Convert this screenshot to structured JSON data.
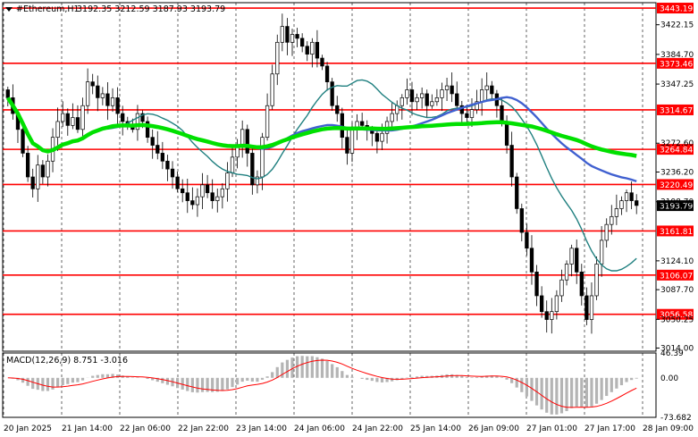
{
  "header": {
    "symbol": "#Ethereum,H1",
    "ohlc": "3192.35 3212.59 3187.93 3193.79"
  },
  "current_price": "3193.79",
  "price_scale": [
    "3422.15",
    "3384.70",
    "3347.25",
    "3272.60",
    "3236.20",
    "3198.70",
    "3124.10",
    "3087.70",
    "3050.25",
    "3014.00"
  ],
  "levels": [
    {
      "label": "3443.19",
      "value": 3443.19
    },
    {
      "label": "3373.46",
      "value": 3373.46
    },
    {
      "label": "3314.67",
      "value": 3314.67
    },
    {
      "label": "3264.84",
      "value": 3264.84
    },
    {
      "label": "3220.49",
      "value": 3220.49
    },
    {
      "label": "3161.81",
      "value": 3161.81
    },
    {
      "label": "3106.07",
      "value": 3106.07
    },
    {
      "label": "3056.58",
      "value": 3056.58
    }
  ],
  "time_labels": [
    "20 Jan 2025",
    "21 Jan 14:00",
    "22 Jan 06:00",
    "22 Jan 22:00",
    "23 Jan 14:00",
    "24 Jan 06:00",
    "24 Jan 22:00",
    "25 Jan 14:00",
    "26 Jan 09:00",
    "27 Jan 01:00",
    "27 Jan 17:00",
    "28 Jan 09:00"
  ],
  "macd": {
    "label": "MACD(12,26,9) 8.751 -3.016",
    "scale": [
      "46.39",
      "0.00",
      "-73.682"
    ]
  },
  "colors": {
    "level_line": "#ff0000",
    "ma_green": "#00e000",
    "ma_blue": "#4060d0",
    "ma_teal": "#208080",
    "candle": "#000000",
    "macd_hist": "#b4b4b4",
    "macd_signal": "#ff0000",
    "price_tag": "#000000"
  },
  "chart_data": {
    "type": "candlestick",
    "instrument": "#Ethereum",
    "timeframe": "H1",
    "ylim": [
      3010,
      3450
    ],
    "closes": [
      3330,
      3310,
      3290,
      3260,
      3230,
      3215,
      3245,
      3230,
      3250,
      3280,
      3300,
      3310,
      3295,
      3305,
      3290,
      3320,
      3350,
      3345,
      3330,
      3335,
      3320,
      3330,
      3310,
      3300,
      3295,
      3290,
      3310,
      3300,
      3280,
      3270,
      3260,
      3250,
      3240,
      3230,
      3215,
      3210,
      3200,
      3195,
      3205,
      3220,
      3210,
      3200,
      3205,
      3215,
      3235,
      3255,
      3270,
      3290,
      3260,
      3220,
      3230,
      3280,
      3320,
      3360,
      3400,
      3420,
      3400,
      3410,
      3405,
      3395,
      3385,
      3400,
      3380,
      3370,
      3350,
      3320,
      3310,
      3280,
      3260,
      3290,
      3300,
      3295,
      3290,
      3285,
      3275,
      3285,
      3300,
      3310,
      3320,
      3330,
      3340,
      3325,
      3330,
      3335,
      3320,
      3325,
      3330,
      3340,
      3345,
      3335,
      3320,
      3310,
      3305,
      3315,
      3325,
      3340,
      3345,
      3335,
      3320,
      3300,
      3270,
      3230,
      3190,
      3160,
      3140,
      3110,
      3080,
      3060,
      3050,
      3060,
      3080,
      3100,
      3120,
      3140,
      3110,
      3080,
      3050,
      3080,
      3120,
      3150,
      3170,
      3180,
      3190,
      3200,
      3210,
      3200,
      3194
    ]
  }
}
